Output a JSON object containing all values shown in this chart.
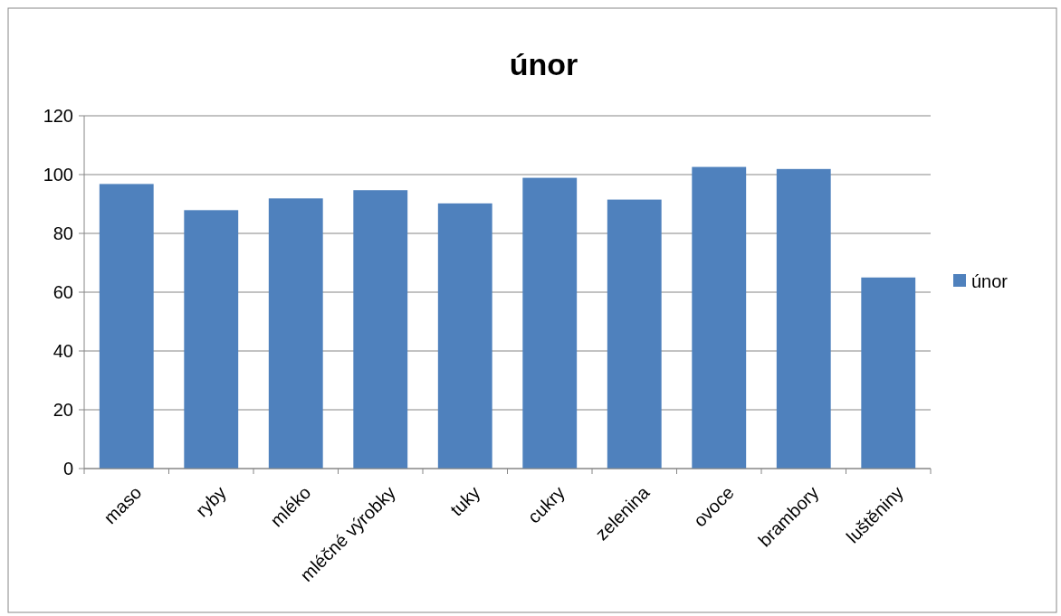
{
  "chart_data": {
    "type": "bar",
    "title": "únor",
    "categories": [
      "maso",
      "ryby",
      "mléko",
      "mléčné výrobky",
      "tuky",
      "cukry",
      "zelenina",
      "ovoce",
      "brambory",
      "luštěniny"
    ],
    "series": [
      {
        "name": "únor",
        "color": "#4f81bd",
        "values": [
          96.8,
          87.9,
          91.9,
          94.7,
          90.2,
          98.9,
          91.5,
          102.6,
          101.9,
          65
        ]
      }
    ],
    "ylim": [
      0,
      120
    ],
    "yticks": [
      0,
      20,
      40,
      60,
      80,
      100,
      120
    ],
    "grid": "y",
    "legend": "right"
  }
}
